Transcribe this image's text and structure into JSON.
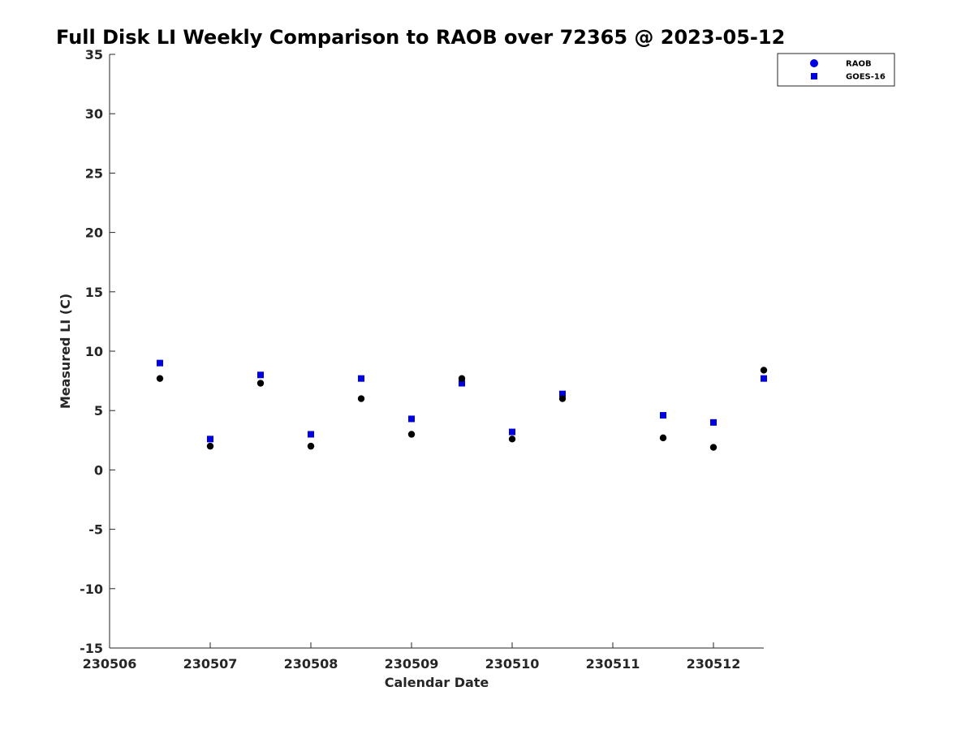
{
  "chart_data": {
    "type": "scatter",
    "title": "Full Disk LI Weekly Comparison to RAOB over 72365 @ 2023-05-12",
    "xlabel": "Calendar Date",
    "ylabel": "Measured LI (C)",
    "xlim": [
      230506,
      230512.5
    ],
    "ylim": [
      -15,
      35
    ],
    "x_ticks": [
      230506,
      230507,
      230508,
      230509,
      230510,
      230511,
      230512
    ],
    "x_tick_labels": [
      "230506",
      "230507",
      "230508",
      "230509",
      "230510",
      "230511",
      "230512"
    ],
    "y_ticks": [
      -15,
      -10,
      -5,
      0,
      5,
      10,
      15,
      20,
      25,
      30,
      35
    ],
    "y_tick_labels": [
      "-15",
      "-10",
      "-5",
      "0",
      "5",
      "10",
      "15",
      "20",
      "25",
      "30",
      "35"
    ],
    "grid": false,
    "legend_position": "top-right",
    "series": [
      {
        "name": "RAOB",
        "marker": "circle",
        "color": "#000000",
        "legend_color": "#0000e0",
        "x": [
          230506.5,
          230507,
          230507.5,
          230508,
          230508.5,
          230509,
          230509.5,
          230510,
          230510.5,
          230511.5,
          230512,
          230512.5
        ],
        "y": [
          7.7,
          2.0,
          7.3,
          2.0,
          6.0,
          3.0,
          7.7,
          2.6,
          6.0,
          2.7,
          1.9,
          8.4
        ]
      },
      {
        "name": "GOES-16",
        "marker": "square",
        "color": "#0000e0",
        "x": [
          230506.5,
          230507,
          230507.5,
          230508,
          230508.5,
          230509,
          230509.5,
          230510,
          230510.5,
          230511.5,
          230512,
          230512.5
        ],
        "y": [
          9.0,
          2.6,
          8.0,
          3.0,
          7.7,
          4.3,
          7.3,
          3.2,
          6.4,
          4.6,
          4.0,
          7.7
        ]
      }
    ]
  }
}
